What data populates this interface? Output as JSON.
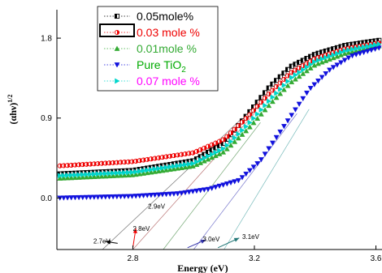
{
  "chart_data": {
    "type": "scatter",
    "xlabel": "Energy (eV)",
    "ylabel": "(αhν)",
    "ylabel_sup": "1/2",
    "xlim": [
      2.55,
      3.62
    ],
    "ylim": [
      -0.58,
      2.12
    ],
    "x_ticks": [
      {
        "value": 2.8,
        "label": "2.8"
      },
      {
        "value": 3.2,
        "label": "3.2"
      },
      {
        "value": 3.6,
        "label": "3.6"
      }
    ],
    "y_ticks": [
      {
        "value": 0.0,
        "label": "0.0"
      },
      {
        "value": 0.9,
        "label": "0.9"
      },
      {
        "value": 1.8,
        "label": "1.8"
      }
    ],
    "legend_position": "top-left",
    "series": [
      {
        "name": "0.05mole%",
        "color": "#000000",
        "marker": "square",
        "points": [
          [
            2.55,
            0.27
          ],
          [
            2.8,
            0.31
          ],
          [
            3.0,
            0.42
          ],
          [
            3.1,
            0.62
          ],
          [
            3.18,
            0.95
          ],
          [
            3.25,
            1.25
          ],
          [
            3.32,
            1.48
          ],
          [
            3.4,
            1.62
          ],
          [
            3.5,
            1.72
          ],
          [
            3.62,
            1.78
          ]
        ]
      },
      {
        "name": "0.03 mole %",
        "color": "#ee0000",
        "marker": "circle",
        "points": [
          [
            2.55,
            0.36
          ],
          [
            2.8,
            0.41
          ],
          [
            3.0,
            0.51
          ],
          [
            3.1,
            0.66
          ],
          [
            3.18,
            0.92
          ],
          [
            3.25,
            1.18
          ],
          [
            3.32,
            1.41
          ],
          [
            3.4,
            1.57
          ],
          [
            3.5,
            1.68
          ],
          [
            3.62,
            1.75
          ]
        ]
      },
      {
        "name": "0.01mole %",
        "color": "#33aa33",
        "marker": "triangle-up",
        "points": [
          [
            2.55,
            0.22
          ],
          [
            2.8,
            0.26
          ],
          [
            3.0,
            0.36
          ],
          [
            3.1,
            0.52
          ],
          [
            3.18,
            0.78
          ],
          [
            3.25,
            1.05
          ],
          [
            3.32,
            1.3
          ],
          [
            3.4,
            1.5
          ],
          [
            3.5,
            1.63
          ],
          [
            3.62,
            1.72
          ]
        ]
      },
      {
        "name": "Pure TiO",
        "name_sub": "2",
        "legend_color": "#00aa00",
        "color": "#1111dd",
        "marker": "triangle-down",
        "points": [
          [
            2.55,
            0.0
          ],
          [
            2.8,
            0.02
          ],
          [
            2.95,
            0.05
          ],
          [
            3.05,
            0.1
          ],
          [
            3.15,
            0.2
          ],
          [
            3.22,
            0.42
          ],
          [
            3.3,
            0.82
          ],
          [
            3.38,
            1.22
          ],
          [
            3.45,
            1.45
          ],
          [
            3.52,
            1.6
          ],
          [
            3.62,
            1.7
          ]
        ]
      },
      {
        "name": "0.07 mole %",
        "legend_color": "#ff00ff",
        "color": "#00d6cc",
        "marker": "triangle-right",
        "points": [
          [
            2.55,
            0.25
          ],
          [
            2.8,
            0.29
          ],
          [
            3.0,
            0.39
          ],
          [
            3.1,
            0.56
          ],
          [
            3.18,
            0.83
          ],
          [
            3.25,
            1.1
          ],
          [
            3.32,
            1.35
          ],
          [
            3.4,
            1.54
          ],
          [
            3.5,
            1.66
          ],
          [
            3.62,
            1.74
          ]
        ]
      }
    ],
    "tangent_lines": [
      {
        "x1": 2.7,
        "x2": 3.16,
        "y2": 0.9,
        "color": "#777777"
      },
      {
        "x1": 2.8,
        "x2": 3.2,
        "y2": 0.95,
        "color": "#bb7777"
      },
      {
        "x1": 2.9,
        "x2": 3.22,
        "y2": 0.85,
        "color": "#77aa77"
      },
      {
        "x1": 3.0,
        "x2": 3.34,
        "y2": 0.95,
        "color": "#7777cc"
      },
      {
        "x1": 3.1,
        "x2": 3.38,
        "y2": 1.0,
        "color": "#77bbbb"
      }
    ],
    "annotations": [
      {
        "text": "2.9eV",
        "x": 2.85,
        "y": -0.12
      },
      {
        "text": "2.8eV",
        "x": 2.8,
        "y": -0.37
      },
      {
        "text": "2.7eV",
        "x": 2.67,
        "y": -0.51
      },
      {
        "text": "3.0eV",
        "x": 3.03,
        "y": -0.49
      },
      {
        "text": "3.1eV",
        "x": 3.16,
        "y": -0.46
      }
    ],
    "arrows": [
      {
        "x1": 2.75,
        "y1": -0.51,
        "x2": 2.71,
        "y2": -0.49,
        "color": "#000000"
      },
      {
        "x1": 2.8,
        "y1": -0.56,
        "x2": 2.81,
        "y2": -0.34,
        "color": "#ee0000"
      },
      {
        "x1": 2.98,
        "y1": -0.56,
        "x2": 3.04,
        "y2": -0.47,
        "color": "#3333aa"
      },
      {
        "x1": 3.08,
        "y1": -0.56,
        "x2": 3.15,
        "y2": -0.45,
        "color": "#227777"
      }
    ]
  }
}
